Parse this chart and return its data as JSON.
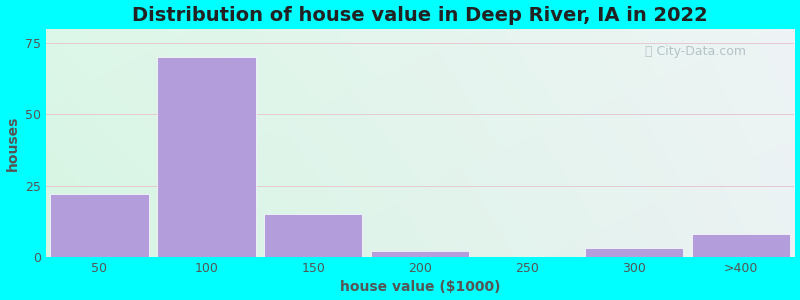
{
  "title": "Distribution of house value in Deep River, IA in 2022",
  "xlabel": "house value ($1000)",
  "ylabel": "houses",
  "bar_labels": [
    "50",
    "100",
    "150",
    "200",
    "250",
    "300",
    ">400"
  ],
  "bar_heights": [
    22,
    70,
    15,
    2,
    0,
    3,
    8
  ],
  "bar_color": "#b39ddb",
  "bar_edgecolor": "#ffffff",
  "ylim": [
    0,
    80
  ],
  "yticks": [
    0,
    25,
    50,
    75
  ],
  "bg_outer": "#00ffff",
  "title_fontsize": 14,
  "axis_label_fontsize": 10,
  "tick_fontsize": 9,
  "watermark_text": "City-Data.com",
  "bar_width": 0.92,
  "grid_color": "#dddddd",
  "bg_grad_left": "#d6f5e3",
  "bg_grad_right": "#e8eff0"
}
